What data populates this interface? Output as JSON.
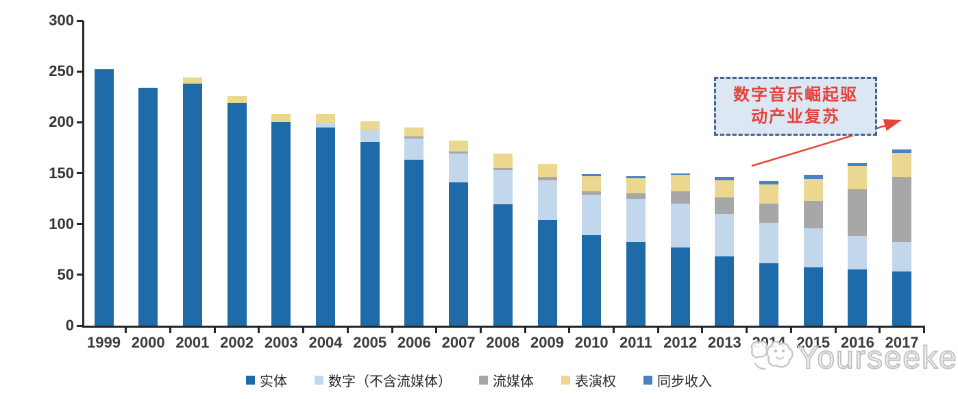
{
  "chart_data": {
    "type": "bar",
    "stacked": true,
    "categories": [
      "1999",
      "2000",
      "2001",
      "2002",
      "2003",
      "2004",
      "2005",
      "2006",
      "2007",
      "2008",
      "2009",
      "2010",
      "2011",
      "2012",
      "2013",
      "2014",
      "2015",
      "2016",
      "2017"
    ],
    "series": [
      {
        "name": "实体",
        "color": "#1F6BAA",
        "values": [
          252,
          234,
          238,
          219,
          200,
          195,
          181,
          163,
          141,
          119,
          104,
          89,
          82,
          77,
          68,
          61,
          57,
          55,
          53
        ]
      },
      {
        "name": "数字（不含流媒体）",
        "color": "#C2D7EC",
        "values": [
          0,
          0,
          0,
          0,
          0,
          4,
          11,
          21,
          28,
          34,
          39,
          40,
          43,
          43,
          42,
          40,
          39,
          33,
          29
        ]
      },
      {
        "name": "流媒体",
        "color": "#A7A7A7",
        "values": [
          0,
          0,
          0,
          0,
          0,
          0,
          0,
          2,
          2,
          2,
          3,
          3,
          5,
          12,
          16,
          19,
          27,
          46,
          64
        ]
      },
      {
        "name": "表演权",
        "color": "#EBD78F",
        "values": [
          0,
          0,
          6,
          7,
          8,
          9,
          9,
          9,
          11,
          14,
          13,
          15,
          15,
          16,
          17,
          19,
          21,
          23,
          24
        ]
      },
      {
        "name": "同步收入",
        "color": "#4B80C1",
        "values": [
          0,
          0,
          0,
          0,
          0,
          0,
          0,
          0,
          0,
          0,
          0,
          2,
          2,
          2,
          3,
          3,
          4,
          3,
          3
        ]
      }
    ],
    "title": "",
    "xlabel": "",
    "ylabel": "",
    "ylim": [
      0,
      300
    ],
    "yticks": [
      0,
      50,
      100,
      150,
      200,
      250,
      300
    ],
    "grid": false,
    "legend_position": "bottom"
  },
  "annotation": {
    "line1": "数字音乐崛起驱",
    "line2": "动产业复苏",
    "text_color": "#E5413B",
    "box_fill": "#DCE7F4",
    "border_color": "#46618F",
    "arrow_color": "#E94438"
  },
  "watermark": {
    "text": "Yourseeker",
    "color": "#c3c3c3"
  }
}
